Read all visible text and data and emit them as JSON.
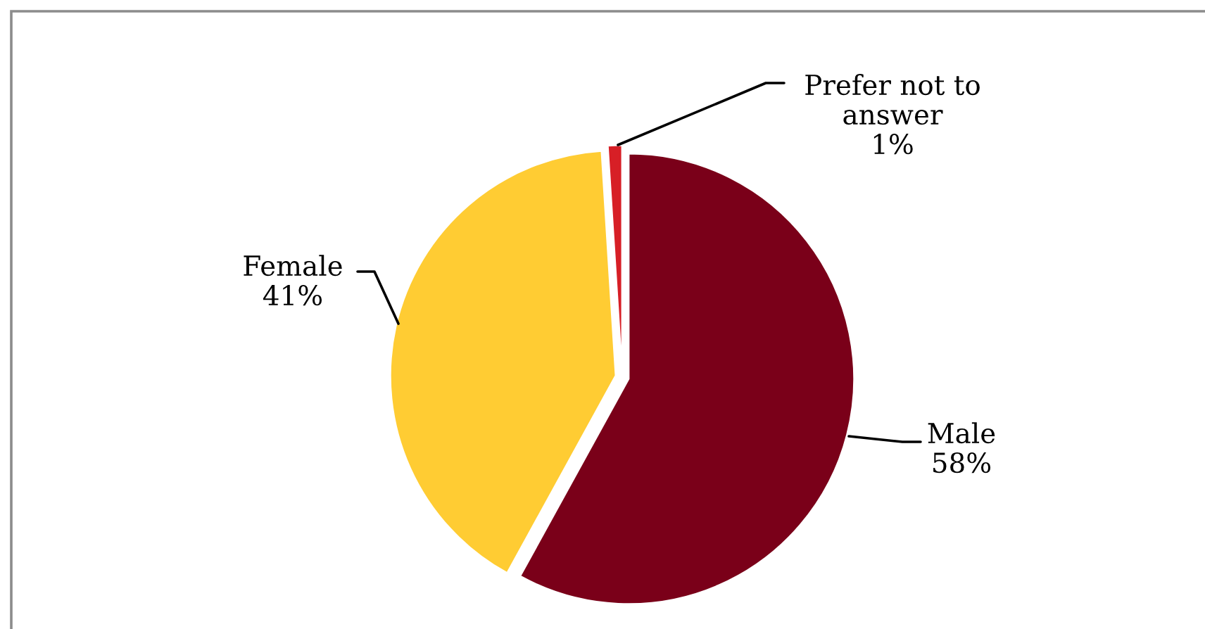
{
  "chart_data": {
    "type": "pie",
    "categories": [
      "Male",
      "Female",
      "Prefer not to answer"
    ],
    "values": [
      58,
      41,
      1
    ],
    "colors": [
      "#7a0019",
      "#ffcc33",
      "#d71f26"
    ],
    "value_labels": [
      "58%",
      "41%",
      "1%"
    ]
  }
}
